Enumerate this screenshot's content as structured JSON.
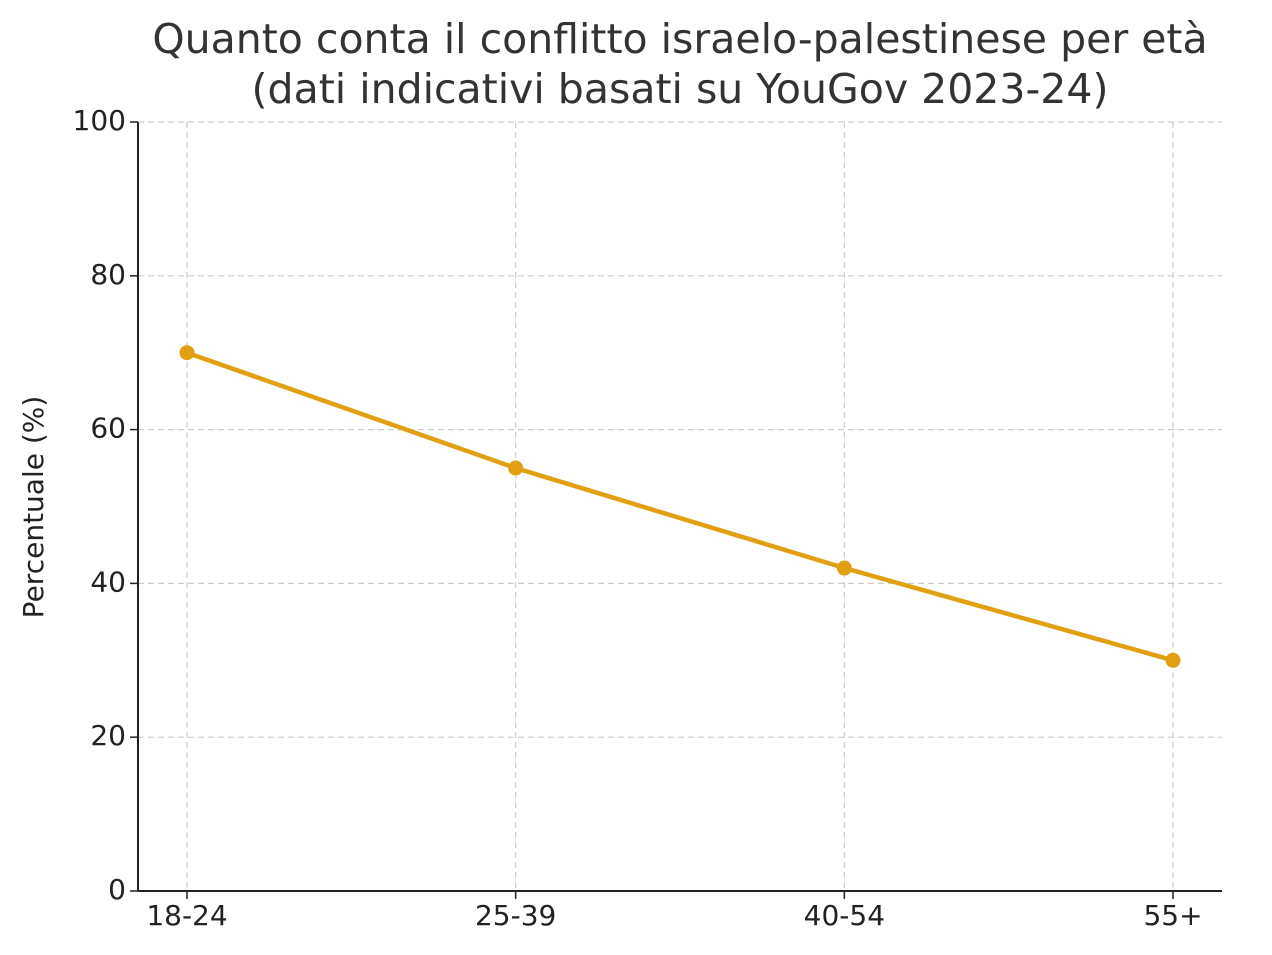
{
  "chart_data": {
    "type": "line",
    "title": [
      "Quanto conta il conflitto israelo-palestinese per età",
      "(dati indicativi basati su YouGov 2023-24)"
    ],
    "y_label": "Percentuale (%)",
    "categories": [
      "18-24",
      "25-39",
      "40-54",
      "55+"
    ],
    "values": [
      70,
      55,
      42,
      30
    ],
    "color": "#e0a012",
    "ylim": [
      0,
      100
    ],
    "yticks": [
      0,
      20,
      40,
      60,
      80,
      100
    ],
    "grid": true
  }
}
